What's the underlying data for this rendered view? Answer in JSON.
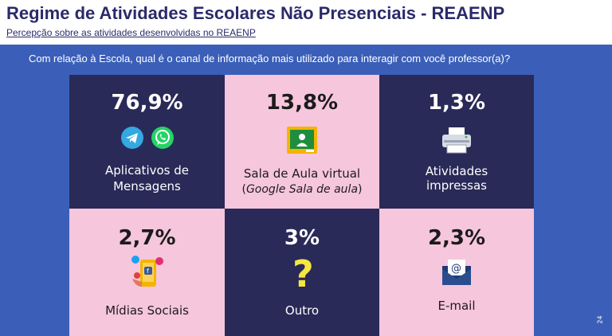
{
  "header": {
    "title": "Regime de Atividades Escolares Não Presenciais - REAENP",
    "subtitle": "Percepção sobre as atividades desenvolvidas no REAENP"
  },
  "question": "Com relação à Escola, qual  é o canal de informação mais utilizado para interagir com você professor(a)?",
  "cards": [
    {
      "percent": "76,9%",
      "label": "Aplicativos de Mensagens",
      "icons": [
        "telegram-icon",
        "whatsapp-icon"
      ]
    },
    {
      "percent": "13,8%",
      "label": "Sala de Aula virtual",
      "sub_open": "(",
      "sub_italic": "Google Sala de aula",
      "sub_close": ")",
      "icons": [
        "google-classroom-icon"
      ]
    },
    {
      "percent": "1,3%",
      "label": "Atividades impressas",
      "icons": [
        "printer-icon"
      ]
    },
    {
      "percent": "2,7%",
      "label": "Mídias Sociais",
      "icons": [
        "social-media-phone-icon"
      ]
    },
    {
      "percent": "3%",
      "label": "Outro",
      "icons": [
        "question-mark-icon"
      ]
    },
    {
      "percent": "2,3%",
      "label": "E-mail",
      "icons": [
        "email-envelope-icon"
      ]
    }
  ],
  "page_number": "24",
  "colors": {
    "background": "#3b5fb8",
    "dark_cell": "#292a58",
    "pink_cell": "#f6c6dc",
    "title": "#2b2a6a"
  }
}
